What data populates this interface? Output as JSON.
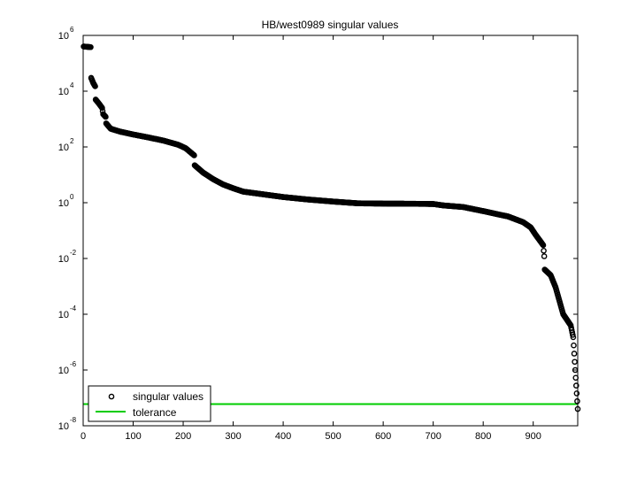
{
  "chart_data": {
    "type": "scatter",
    "title": "HB/west0989 singular values",
    "xlabel": "",
    "ylabel": "",
    "xlim": [
      0,
      989
    ],
    "ylim": [
      1e-08,
      1000000.0
    ],
    "yscale": "log",
    "x_ticks": [
      0,
      100,
      200,
      300,
      400,
      500,
      600,
      700,
      800,
      900
    ],
    "y_ticks": [
      {
        "value": 1e-08,
        "base": "10",
        "exp": "-8"
      },
      {
        "value": 1e-06,
        "base": "10",
        "exp": "-6"
      },
      {
        "value": 0.0001,
        "base": "10",
        "exp": "-4"
      },
      {
        "value": 0.01,
        "base": "10",
        "exp": "-2"
      },
      {
        "value": 1.0,
        "base": "10",
        "exp": "0"
      },
      {
        "value": 100.0,
        "base": "10",
        "exp": "2"
      },
      {
        "value": 10000.0,
        "base": "10",
        "exp": "4"
      },
      {
        "value": 1000000.0,
        "base": "10",
        "exp": "6"
      }
    ],
    "grid": false,
    "legend_position": "bottom-left",
    "series": [
      {
        "name": "singular values",
        "marker": "circle-open",
        "color": "#000000",
        "n_points": 989,
        "profile": [
          [
            1,
            400000
          ],
          [
            15,
            380000
          ],
          [
            16,
            30000
          ],
          [
            20,
            20000
          ],
          [
            24,
            15000
          ],
          [
            25,
            5000
          ],
          [
            32,
            3500
          ],
          [
            38,
            2500
          ],
          [
            40,
            1500
          ],
          [
            45,
            1200
          ],
          [
            46,
            700
          ],
          [
            55,
            450
          ],
          [
            75,
            350
          ],
          [
            100,
            280
          ],
          [
            130,
            220
          ],
          [
            160,
            170
          ],
          [
            190,
            120
          ],
          [
            205,
            90
          ],
          [
            222,
            50
          ],
          [
            223,
            22
          ],
          [
            240,
            12
          ],
          [
            260,
            7
          ],
          [
            280,
            4.5
          ],
          [
            300,
            3.3
          ],
          [
            320,
            2.5
          ],
          [
            360,
            2.0
          ],
          [
            400,
            1.6
          ],
          [
            450,
            1.3
          ],
          [
            500,
            1.1
          ],
          [
            550,
            0.95
          ],
          [
            600,
            0.93
          ],
          [
            650,
            0.92
          ],
          [
            700,
            0.9
          ],
          [
            720,
            0.8
          ],
          [
            760,
            0.7
          ],
          [
            800,
            0.5
          ],
          [
            850,
            0.32
          ],
          [
            880,
            0.2
          ],
          [
            895,
            0.13
          ],
          [
            905,
            0.07
          ],
          [
            915,
            0.04
          ],
          [
            920,
            0.03
          ],
          [
            922,
            0.012
          ],
          [
            923,
            0.004
          ],
          [
            935,
            0.0025
          ],
          [
            945,
            0.0009
          ],
          [
            960,
            0.0001
          ],
          [
            975,
            4e-05
          ],
          [
            980,
            1.5e-05
          ],
          [
            984,
            1e-06
          ],
          [
            989,
            4e-08
          ]
        ]
      },
      {
        "name": "tolerance",
        "type": "hline",
        "color": "#00cc00",
        "value": 6e-08
      }
    ]
  }
}
